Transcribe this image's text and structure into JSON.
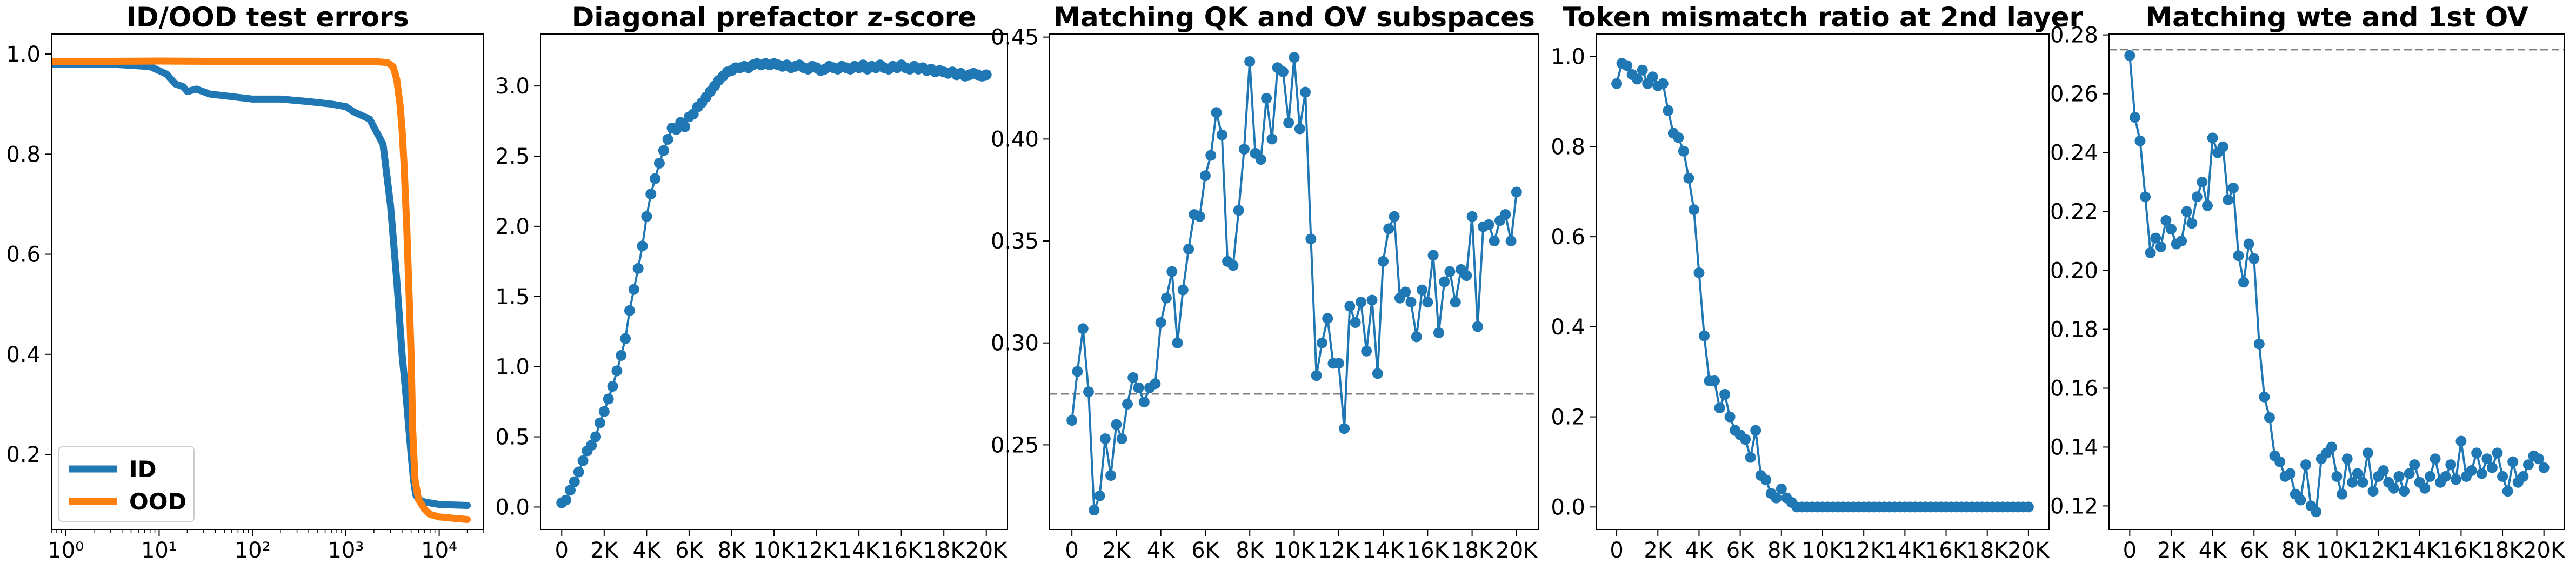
{
  "colors": {
    "blue": "#1f77b4",
    "orange": "#ff7f0e",
    "ref_line": "#7f7f7f"
  },
  "chart_data": [
    {
      "type": "line",
      "title": "ID/OOD test errors",
      "xscale": "log",
      "xlim": [
        0.7,
        30000
      ],
      "ylim": [
        0.05,
        1.04
      ],
      "xticks": [
        1,
        10,
        100,
        1000,
        10000
      ],
      "xtick_labels": [
        "10⁰",
        "10¹",
        "10²",
        "10³",
        "10⁴"
      ],
      "yticks": [
        0.2,
        0.4,
        0.6,
        0.8,
        1.0
      ],
      "ytick_labels": [
        "0.2",
        "0.4",
        "0.6",
        "0.8",
        "1.0"
      ],
      "legend": "lower-left",
      "grid": false,
      "series": [
        {
          "name": "ID",
          "color": "#1f77b4",
          "x": [
            0.7,
            1,
            3,
            8,
            12,
            15,
            18,
            20,
            25,
            35,
            60,
            100,
            200,
            400,
            700,
            1000,
            1200,
            1800,
            2500,
            3000,
            3500,
            4000,
            4500,
            5000,
            5300,
            5600,
            6000,
            7000,
            10000,
            20000
          ],
          "y": [
            0.98,
            0.98,
            0.98,
            0.975,
            0.96,
            0.94,
            0.935,
            0.925,
            0.93,
            0.92,
            0.915,
            0.91,
            0.91,
            0.905,
            0.9,
            0.895,
            0.885,
            0.87,
            0.82,
            0.7,
            0.55,
            0.4,
            0.3,
            0.2,
            0.15,
            0.12,
            0.11,
            0.105,
            0.1,
            0.098
          ]
        },
        {
          "name": "OOD",
          "color": "#ff7f0e",
          "x": [
            0.7,
            1,
            10,
            100,
            1000,
            2000,
            2800,
            3200,
            3500,
            3800,
            4000,
            4200,
            4500,
            4800,
            5000,
            5200,
            5500,
            6000,
            7000,
            8000,
            10000,
            15000,
            20000
          ],
          "y": [
            0.985,
            0.985,
            0.986,
            0.985,
            0.985,
            0.985,
            0.983,
            0.975,
            0.95,
            0.9,
            0.85,
            0.78,
            0.65,
            0.5,
            0.4,
            0.25,
            0.15,
            0.11,
            0.09,
            0.08,
            0.075,
            0.072,
            0.07
          ]
        }
      ]
    },
    {
      "type": "line",
      "title": "Diagonal prefactor z-score",
      "xlim": [
        -1000,
        21000
      ],
      "ylim": [
        -0.16,
        3.37
      ],
      "xticks": [
        0,
        2000,
        4000,
        6000,
        8000,
        10000,
        12000,
        14000,
        16000,
        18000,
        20000
      ],
      "xtick_labels": [
        "0",
        "2K",
        "4K",
        "6K",
        "8K",
        "10K",
        "12K",
        "14K",
        "16K",
        "18K",
        "20K"
      ],
      "yticks": [
        0,
        0.5,
        1.0,
        1.5,
        2.0,
        2.5,
        3.0
      ],
      "ytick_labels": [
        "0.0",
        "0.5",
        "1.0",
        "1.5",
        "2.0",
        "2.5",
        "3.0"
      ],
      "grid": false,
      "series": [
        {
          "color": "#1f77b4",
          "marker": "circle",
          "x": [
            0,
            200,
            400,
            600,
            800,
            1000,
            1200,
            1400,
            1600,
            1800,
            2000,
            2200,
            2400,
            2600,
            2800,
            3000,
            3200,
            3400,
            3600,
            3800,
            4000,
            4200,
            4400,
            4600,
            4800,
            5000,
            5200,
            5400,
            5600,
            5800,
            6000,
            6200,
            6400,
            6600,
            6800,
            7000,
            7200,
            7400,
            7600,
            7800,
            8000,
            8200,
            8400,
            8600,
            8800,
            9000,
            9200,
            9400,
            9600,
            9800,
            10000,
            10200,
            10400,
            10600,
            10800,
            11000,
            11200,
            11400,
            11600,
            11800,
            12000,
            12200,
            12400,
            12600,
            12800,
            13000,
            13200,
            13400,
            13600,
            13800,
            14000,
            14200,
            14400,
            14600,
            14800,
            15000,
            15200,
            15400,
            15600,
            15800,
            16000,
            16200,
            16400,
            16600,
            16800,
            17000,
            17200,
            17400,
            17600,
            17800,
            18000,
            18200,
            18400,
            18600,
            18800,
            19000,
            19200,
            19400,
            19600,
            19800,
            20000
          ],
          "y": [
            0.03,
            0.05,
            0.12,
            0.18,
            0.25,
            0.33,
            0.4,
            0.44,
            0.5,
            0.6,
            0.68,
            0.77,
            0.86,
            0.97,
            1.08,
            1.2,
            1.4,
            1.55,
            1.7,
            1.86,
            2.07,
            2.23,
            2.34,
            2.45,
            2.54,
            2.62,
            2.7,
            2.69,
            2.74,
            2.71,
            2.78,
            2.8,
            2.85,
            2.88,
            2.92,
            2.96,
            3.0,
            3.04,
            3.07,
            3.1,
            3.11,
            3.13,
            3.13,
            3.14,
            3.13,
            3.15,
            3.16,
            3.15,
            3.16,
            3.15,
            3.16,
            3.15,
            3.14,
            3.15,
            3.13,
            3.14,
            3.15,
            3.13,
            3.12,
            3.14,
            3.13,
            3.11,
            3.12,
            3.14,
            3.13,
            3.12,
            3.14,
            3.13,
            3.12,
            3.14,
            3.13,
            3.15,
            3.12,
            3.14,
            3.13,
            3.15,
            3.13,
            3.12,
            3.14,
            3.13,
            3.15,
            3.13,
            3.12,
            3.14,
            3.12,
            3.13,
            3.11,
            3.12,
            3.1,
            3.11,
            3.1,
            3.09,
            3.1,
            3.08,
            3.09,
            3.07,
            3.08,
            3.09,
            3.08,
            3.07,
            3.08
          ]
        }
      ]
    },
    {
      "type": "line",
      "title": "Matching QK and OV subspaces",
      "xlim": [
        -1000,
        21000
      ],
      "ylim": [
        0.2085,
        0.4515
      ],
      "xticks": [
        0,
        2000,
        4000,
        6000,
        8000,
        10000,
        12000,
        14000,
        16000,
        18000,
        20000
      ],
      "xtick_labels": [
        "0",
        "2K",
        "4K",
        "6K",
        "8K",
        "10K",
        "12K",
        "14K",
        "16K",
        "18K",
        "20K"
      ],
      "yticks": [
        0.25,
        0.3,
        0.35,
        0.4,
        0.45
      ],
      "ytick_labels": [
        "0.25",
        "0.30",
        "0.35",
        "0.40",
        "0.45"
      ],
      "reference_line": 0.275,
      "grid": false,
      "series": [
        {
          "color": "#1f77b4",
          "marker": "circle",
          "x": [
            0,
            250,
            500,
            750,
            1000,
            1250,
            1500,
            1750,
            2000,
            2250,
            2500,
            2750,
            3000,
            3250,
            3500,
            3750,
            4000,
            4250,
            4500,
            4750,
            5000,
            5250,
            5500,
            5750,
            6000,
            6250,
            6500,
            6750,
            7000,
            7250,
            7500,
            7750,
            8000,
            8250,
            8500,
            8750,
            9000,
            9250,
            9500,
            9750,
            10000,
            10250,
            10500,
            10750,
            11000,
            11250,
            11500,
            11750,
            12000,
            12250,
            12500,
            12750,
            13000,
            13250,
            13500,
            13750,
            14000,
            14250,
            14500,
            14750,
            15000,
            15250,
            15500,
            15750,
            16000,
            16250,
            16500,
            16750,
            17000,
            17250,
            17500,
            17750,
            18000,
            18250,
            18500,
            18750,
            19000,
            19250,
            19500,
            19750,
            20000
          ],
          "y": [
            0.262,
            0.286,
            0.307,
            0.276,
            0.218,
            0.225,
            0.253,
            0.235,
            0.26,
            0.253,
            0.27,
            0.283,
            0.278,
            0.271,
            0.278,
            0.28,
            0.31,
            0.322,
            0.335,
            0.3,
            0.326,
            0.346,
            0.363,
            0.362,
            0.382,
            0.392,
            0.413,
            0.402,
            0.34,
            0.338,
            0.365,
            0.395,
            0.438,
            0.393,
            0.39,
            0.42,
            0.4,
            0.435,
            0.433,
            0.408,
            0.44,
            0.405,
            0.423,
            0.351,
            0.284,
            0.3,
            0.312,
            0.29,
            0.29,
            0.258,
            0.318,
            0.31,
            0.32,
            0.296,
            0.321,
            0.285,
            0.34,
            0.356,
            0.362,
            0.322,
            0.325,
            0.32,
            0.303,
            0.326,
            0.32,
            0.343,
            0.305,
            0.33,
            0.335,
            0.32,
            0.336,
            0.333,
            0.362,
            0.308,
            0.357,
            0.358,
            0.35,
            0.36,
            0.363,
            0.35,
            0.374
          ]
        }
      ]
    },
    {
      "type": "line",
      "title": "Token mismatch ratio at 2nd layer",
      "xlim": [
        -1000,
        21000
      ],
      "ylim": [
        -0.05,
        1.05
      ],
      "xticks": [
        0,
        2000,
        4000,
        6000,
        8000,
        10000,
        12000,
        14000,
        16000,
        18000,
        20000
      ],
      "xtick_labels": [
        "0",
        "2K",
        "4K",
        "6K",
        "8K",
        "10K",
        "12K",
        "14K",
        "16K",
        "18K",
        "20K"
      ],
      "yticks": [
        0,
        0.2,
        0.4,
        0.6,
        0.8,
        1.0
      ],
      "ytick_labels": [
        "0.0",
        "0.2",
        "0.4",
        "0.6",
        "0.8",
        "1.0"
      ],
      "grid": false,
      "series": [
        {
          "color": "#1f77b4",
          "marker": "circle",
          "x": [
            0,
            250,
            500,
            750,
            1000,
            1250,
            1500,
            1750,
            2000,
            2250,
            2500,
            2750,
            3000,
            3250,
            3500,
            3750,
            4000,
            4250,
            4500,
            4750,
            5000,
            5250,
            5500,
            5750,
            6000,
            6250,
            6500,
            6750,
            7000,
            7250,
            7500,
            7750,
            8000,
            8250,
            8500,
            8750,
            9000,
            9250,
            9500,
            9750,
            10000,
            10250,
            10500,
            10750,
            11000,
            11250,
            11500,
            11750,
            12000,
            12250,
            12500,
            12750,
            13000,
            13250,
            13500,
            13750,
            14000,
            14250,
            14500,
            14750,
            15000,
            15250,
            15500,
            15750,
            16000,
            16250,
            16500,
            16750,
            17000,
            17250,
            17500,
            17750,
            18000,
            18250,
            18500,
            18750,
            19000,
            19250,
            19500,
            19750,
            20000
          ],
          "y": [
            0.94,
            0.985,
            0.98,
            0.96,
            0.95,
            0.97,
            0.94,
            0.955,
            0.935,
            0.94,
            0.88,
            0.83,
            0.82,
            0.79,
            0.73,
            0.66,
            0.52,
            0.38,
            0.28,
            0.28,
            0.22,
            0.25,
            0.2,
            0.17,
            0.16,
            0.15,
            0.11,
            0.17,
            0.07,
            0.06,
            0.03,
            0.02,
            0.04,
            0.02,
            0.01,
            0,
            0,
            0,
            0,
            0,
            0,
            0,
            0,
            0,
            0,
            0,
            0,
            0,
            0,
            0,
            0,
            0,
            0,
            0,
            0,
            0,
            0,
            0,
            0,
            0,
            0,
            0,
            0,
            0,
            0,
            0,
            0,
            0,
            0,
            0,
            0,
            0,
            0,
            0,
            0,
            0,
            0,
            0,
            0,
            0,
            0
          ]
        }
      ]
    },
    {
      "type": "line",
      "title": "Matching wte and 1st OV",
      "xlim": [
        -1000,
        21000
      ],
      "ylim": [
        0.112,
        0.2803
      ],
      "xticks": [
        0,
        2000,
        4000,
        6000,
        8000,
        10000,
        12000,
        14000,
        16000,
        18000,
        20000
      ],
      "xtick_labels": [
        "0",
        "2K",
        "4K",
        "6K",
        "8K",
        "10K",
        "12K",
        "14K",
        "16K",
        "18K",
        "20K"
      ],
      "yticks": [
        0.12,
        0.14,
        0.16,
        0.18,
        0.2,
        0.22,
        0.24,
        0.26,
        0.28
      ],
      "ytick_labels": [
        "0.12",
        "0.14",
        "0.16",
        "0.18",
        "0.20",
        "0.22",
        "0.24",
        "0.26",
        "0.28"
      ],
      "reference_line": 0.275,
      "grid": false,
      "series": [
        {
          "color": "#1f77b4",
          "marker": "circle",
          "x": [
            0,
            250,
            500,
            750,
            1000,
            1250,
            1500,
            1750,
            2000,
            2250,
            2500,
            2750,
            3000,
            3250,
            3500,
            3750,
            4000,
            4250,
            4500,
            4750,
            5000,
            5250,
            5500,
            5750,
            6000,
            6250,
            6500,
            6750,
            7000,
            7250,
            7500,
            7750,
            8000,
            8250,
            8500,
            8750,
            9000,
            9250,
            9500,
            9750,
            10000,
            10250,
            10500,
            10750,
            11000,
            11250,
            11500,
            11750,
            12000,
            12250,
            12500,
            12750,
            13000,
            13250,
            13500,
            13750,
            14000,
            14250,
            14500,
            14750,
            15000,
            15250,
            15500,
            15750,
            16000,
            16250,
            16500,
            16750,
            17000,
            17250,
            17500,
            17750,
            18000,
            18250,
            18500,
            18750,
            19000,
            19250,
            19500,
            19750,
            20000
          ],
          "y": [
            0.273,
            0.252,
            0.244,
            0.225,
            0.206,
            0.211,
            0.208,
            0.217,
            0.214,
            0.209,
            0.21,
            0.22,
            0.216,
            0.225,
            0.23,
            0.222,
            0.245,
            0.24,
            0.242,
            0.224,
            0.228,
            0.205,
            0.196,
            0.209,
            0.204,
            0.175,
            0.157,
            0.15,
            0.137,
            0.135,
            0.13,
            0.131,
            0.124,
            0.122,
            0.134,
            0.12,
            0.118,
            0.136,
            0.138,
            0.14,
            0.13,
            0.124,
            0.136,
            0.128,
            0.131,
            0.128,
            0.138,
            0.125,
            0.13,
            0.132,
            0.128,
            0.126,
            0.13,
            0.125,
            0.131,
            0.134,
            0.128,
            0.126,
            0.13,
            0.136,
            0.128,
            0.13,
            0.134,
            0.129,
            0.142,
            0.13,
            0.132,
            0.138,
            0.131,
            0.136,
            0.133,
            0.138,
            0.13,
            0.125,
            0.135,
            0.128,
            0.13,
            0.134,
            0.137,
            0.136,
            0.133
          ]
        }
      ]
    }
  ]
}
